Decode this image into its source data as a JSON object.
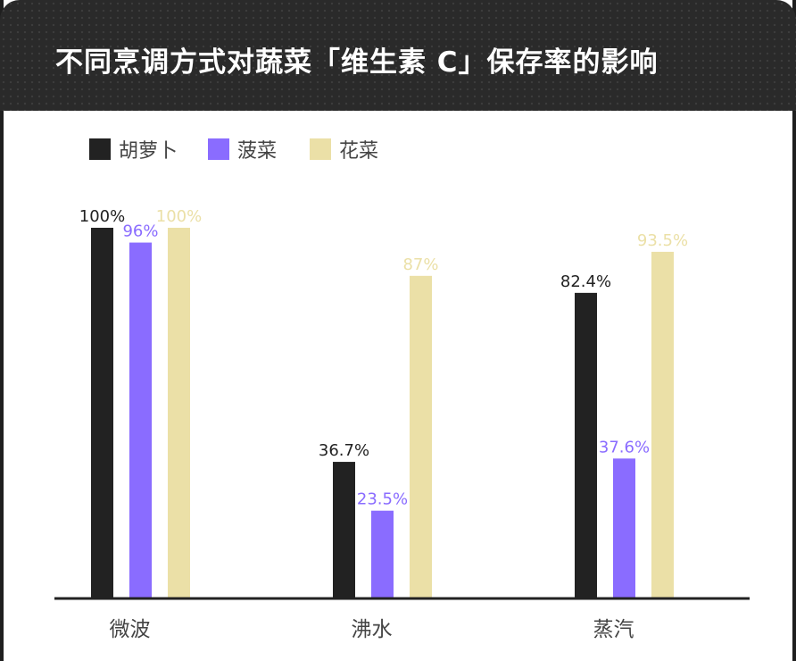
{
  "title": "不同烹调方式对蔬菜「维生素 C」保存率的影响",
  "colors": {
    "header_bg": "#2a2a2a",
    "carrot": "#222222",
    "spinach": "#8a6cff",
    "broccoli": "#ebe0a7",
    "axis": "#222222",
    "category_text": "#444444"
  },
  "chart_data": {
    "type": "bar",
    "title": "不同烹调方式对蔬菜「维生素 C」保存率的影响",
    "xlabel": "",
    "ylabel": "",
    "ylim": [
      0,
      100
    ],
    "grid": false,
    "legend_position": "top-left",
    "categories": [
      "微波",
      "沸水",
      "蒸汽"
    ],
    "series": [
      {
        "name": "胡萝卜",
        "color": "#222222",
        "label_color": "#222222",
        "values": [
          100,
          36.7,
          82.4
        ],
        "labels": [
          "100%",
          "36.7%",
          "82.4%"
        ]
      },
      {
        "name": "菠菜",
        "color": "#8a6cff",
        "label_color": "#8a6cff",
        "values": [
          96,
          23.5,
          37.6
        ],
        "labels": [
          "96%",
          "23.5%",
          "37.6%"
        ]
      },
      {
        "name": "花菜",
        "color": "#ebe0a7",
        "label_color": "#ebe0a7",
        "values": [
          100,
          87,
          93.5
        ],
        "labels": [
          "100%",
          "87%",
          "93.5%"
        ]
      }
    ]
  }
}
